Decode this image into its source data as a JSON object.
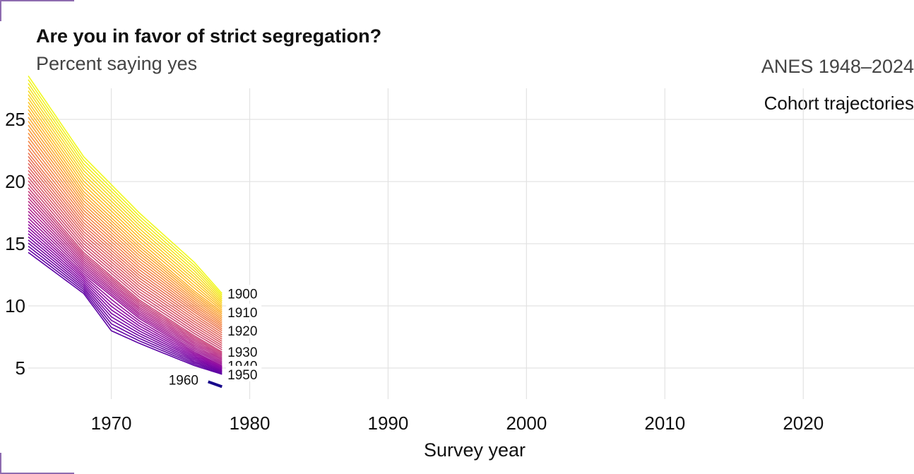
{
  "chart_data": {
    "type": "line",
    "title": "Are you in favor of strict segregation?",
    "subtitle": "Percent saying yes",
    "source_label": "ANES 1948–2024",
    "panel_label": "Cohort trajectories",
    "xlabel": "Survey year",
    "ylabel": "",
    "xlim": [
      1964,
      2028
    ],
    "ylim": [
      2.5,
      27.5
    ],
    "x_ticks": [
      1970,
      1980,
      1990,
      2000,
      2010,
      2020
    ],
    "y_ticks": [
      5,
      10,
      15,
      20,
      25
    ],
    "grid": true,
    "colormap": "plasma",
    "cohort_range": [
      1900,
      1960
    ],
    "series": [
      {
        "name": "1900",
        "x": [
          1964,
          1968,
          1972,
          1976,
          1978
        ],
        "y": [
          28.5,
          22.0,
          17.5,
          13.5,
          11.0
        ]
      },
      {
        "name": "1910",
        "x": [
          1964,
          1968,
          1972,
          1976,
          1978
        ],
        "y": [
          25.5,
          19.2,
          15.0,
          11.2,
          9.5
        ]
      },
      {
        "name": "1920",
        "x": [
          1964,
          1968,
          1972,
          1976,
          1978
        ],
        "y": [
          22.3,
          16.7,
          12.7,
          9.5,
          8.0
        ]
      },
      {
        "name": "1930",
        "x": [
          1964,
          1968,
          1972,
          1976,
          1978
        ],
        "y": [
          19.5,
          14.3,
          10.5,
          7.6,
          6.3
        ]
      },
      {
        "name": "1940",
        "x": [
          1964,
          1968,
          1972,
          1976,
          1978
        ],
        "y": [
          16.8,
          12.6,
          9.0,
          6.3,
          5.2
        ]
      },
      {
        "name": "1950",
        "x": [
          1964,
          1968,
          1970,
          1972,
          1976,
          1978
        ],
        "y": [
          14.3,
          11.0,
          8.0,
          7.0,
          5.2,
          4.5
        ]
      },
      {
        "name": "1960",
        "x": [
          1977,
          1978
        ],
        "y": [
          3.9,
          3.5
        ]
      }
    ],
    "end_labels": [
      "1900",
      "1910",
      "1920",
      "1930",
      "1940",
      "1950"
    ],
    "inline_label": "1960"
  }
}
